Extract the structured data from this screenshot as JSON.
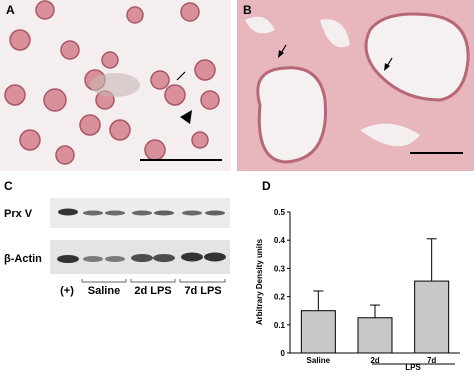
{
  "panel_labels": [
    "A",
    "B",
    "C",
    "D"
  ],
  "blot": {
    "rows": [
      "Prx V",
      "β-Actin"
    ],
    "lanes": [
      "(+)",
      "Saline",
      "2d LPS",
      "7d LPS"
    ]
  },
  "chart_data": {
    "type": "bar",
    "y_label": "Arbitrary Density units",
    "categories": [
      "Saline",
      "2d",
      "7d"
    ],
    "group_label": "LPS",
    "values": [
      0.15,
      0.125,
      0.255
    ],
    "errors": [
      0.07,
      0.045,
      0.15
    ],
    "color": "#c8c8c8",
    "ylim": [
      0,
      0.5
    ],
    "yticks": [
      0,
      0.1,
      0.2,
      0.3,
      0.4,
      0.5
    ]
  }
}
